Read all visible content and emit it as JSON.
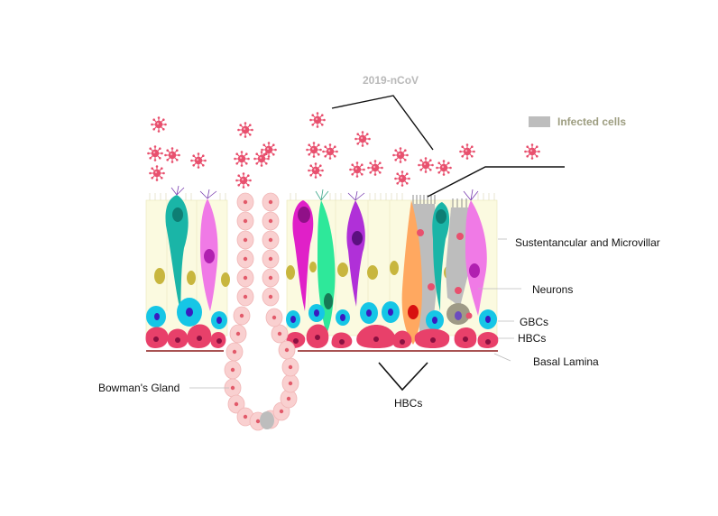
{
  "labels": {
    "virus": "2019-nCoV",
    "legend": "Infected cells",
    "sustentacular": "Sustentancular and Microvillar",
    "neurons": "Neurons",
    "gbcs": "GBCs",
    "hbcs_right": "HBCs",
    "basal_lamina": "Basal Lamina",
    "bowmans_gland": "Bowman's Gland",
    "hbcs_bottom": "HBCs"
  },
  "colors": {
    "virus": "#e8506e",
    "sustentacular_bg": "#fbfae0",
    "basal_cell": "#e8406a",
    "gbc": "#16c6e6",
    "neuron_teal": "#1ab5a7",
    "neuron_pink": "#f07ae6",
    "neuron_magenta": "#e020c8",
    "neuron_green": "#2ee89a",
    "neuron_purple": "#b030d8",
    "neuron_orange": "#ffa860",
    "infected_grey": "#bdbdbd",
    "gland_cell": "#f9d0d0",
    "basal_lamina": "#8c1a1a",
    "nucleus_olive": "#c8b63e"
  }
}
